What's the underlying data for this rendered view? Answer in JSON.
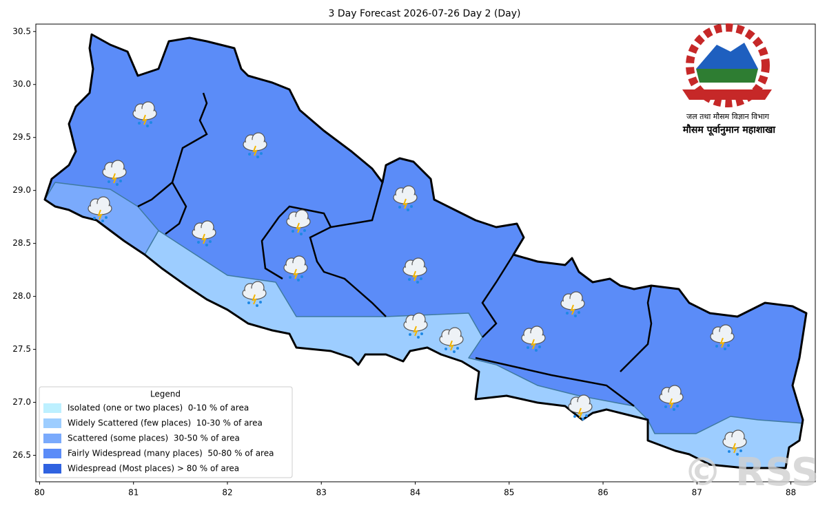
{
  "map": {
    "title": "3 Day Forecast 2026-07-26 Day 2 (Day)",
    "xlim": [
      79.96,
      88.26
    ],
    "ylim": [
      26.25,
      30.57
    ],
    "xticks": [
      80,
      81,
      82,
      83,
      84,
      85,
      86,
      87,
      88
    ],
    "yticks": [
      26.5,
      {
        "value": 27,
        "label": "27.0"
      },
      27.5,
      {
        "value": 28,
        "label": "28.0"
      },
      28.5,
      {
        "value": 29,
        "label": "29.0"
      },
      29.5,
      {
        "value": 30,
        "label": "30.0"
      },
      30.5
    ],
    "legend": {
      "title": "Legend",
      "items": [
        {
          "label": "Isolated (one or two places)  0-10 % of area",
          "color": "#bdf0ff"
        },
        {
          "label": "Widely Scattered (few places)  10-30 % of area",
          "color": "#9dcdff"
        },
        {
          "label": "Scattered (some places)  30-50 % of area",
          "color": "#7aaafc"
        },
        {
          "label": "Fairly Widespread (many places)  50-80 % of area",
          "color": "#5b8cf8"
        },
        {
          "label": "Widespread (Most places) > 80 % of area",
          "color": "#2f62e0"
        }
      ]
    },
    "logo": {
      "line1": "जल तथा मौसम विज्ञान विभाग",
      "line2": "मौसम पूर्वानुमान महाशाखा"
    },
    "watermark": "© RSS"
  }
}
